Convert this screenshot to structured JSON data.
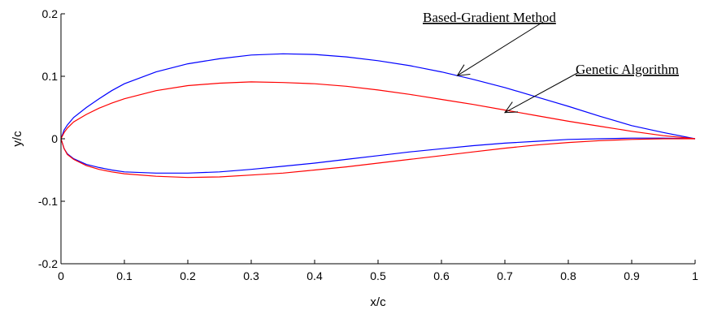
{
  "chart_data": {
    "type": "line",
    "xlabel": "x/c",
    "ylabel": "y/c",
    "xlim": [
      0,
      1
    ],
    "ylim": [
      -0.2,
      0.2
    ],
    "x_ticks": [
      "0",
      "0.1",
      "0.2",
      "0.3",
      "0.4",
      "0.5",
      "0.6",
      "0.7",
      "0.8",
      "0.9",
      "1"
    ],
    "y_ticks": [
      "0.2",
      "0.1",
      "0",
      "-0.1",
      "-0.2"
    ],
    "grid": false,
    "legend": "none",
    "series": [
      {
        "color": "#0000ff",
        "upper": [
          [
            0,
            0
          ],
          [
            0.005,
            0.014
          ],
          [
            0.01,
            0.022
          ],
          [
            0.02,
            0.034
          ],
          [
            0.04,
            0.05
          ],
          [
            0.06,
            0.064
          ],
          [
            0.08,
            0.077
          ],
          [
            0.1,
            0.088
          ],
          [
            0.15,
            0.107
          ],
          [
            0.2,
            0.12
          ],
          [
            0.25,
            0.128
          ],
          [
            0.3,
            0.134
          ],
          [
            0.35,
            0.136
          ],
          [
            0.4,
            0.135
          ],
          [
            0.45,
            0.131
          ],
          [
            0.5,
            0.125
          ],
          [
            0.55,
            0.117
          ],
          [
            0.6,
            0.107
          ],
          [
            0.65,
            0.095
          ],
          [
            0.7,
            0.082
          ],
          [
            0.75,
            0.067
          ],
          [
            0.8,
            0.052
          ],
          [
            0.85,
            0.036
          ],
          [
            0.9,
            0.021
          ],
          [
            0.95,
            0.01
          ],
          [
            1,
            0
          ]
        ],
        "lower": [
          [
            0,
            0
          ],
          [
            0.005,
            -0.016
          ],
          [
            0.01,
            -0.024
          ],
          [
            0.02,
            -0.032
          ],
          [
            0.04,
            -0.041
          ],
          [
            0.06,
            -0.046
          ],
          [
            0.08,
            -0.05
          ],
          [
            0.1,
            -0.053
          ],
          [
            0.15,
            -0.055
          ],
          [
            0.2,
            -0.055
          ],
          [
            0.25,
            -0.053
          ],
          [
            0.3,
            -0.049
          ],
          [
            0.35,
            -0.044
          ],
          [
            0.4,
            -0.039
          ],
          [
            0.45,
            -0.033
          ],
          [
            0.5,
            -0.027
          ],
          [
            0.55,
            -0.021
          ],
          [
            0.6,
            -0.016
          ],
          [
            0.65,
            -0.011
          ],
          [
            0.7,
            -0.007
          ],
          [
            0.75,
            -0.004
          ],
          [
            0.8,
            -0.001
          ],
          [
            0.85,
            0
          ],
          [
            0.9,
            0.001
          ],
          [
            0.95,
            0.001
          ],
          [
            1,
            0
          ]
        ]
      },
      {
        "color": "#ff0000",
        "upper": [
          [
            0,
            0
          ],
          [
            0.005,
            0.01
          ],
          [
            0.01,
            0.017
          ],
          [
            0.02,
            0.027
          ],
          [
            0.04,
            0.039
          ],
          [
            0.06,
            0.049
          ],
          [
            0.08,
            0.057
          ],
          [
            0.1,
            0.064
          ],
          [
            0.15,
            0.077
          ],
          [
            0.2,
            0.085
          ],
          [
            0.25,
            0.089
          ],
          [
            0.3,
            0.091
          ],
          [
            0.35,
            0.09
          ],
          [
            0.4,
            0.088
          ],
          [
            0.45,
            0.084
          ],
          [
            0.5,
            0.078
          ],
          [
            0.55,
            0.071
          ],
          [
            0.6,
            0.063
          ],
          [
            0.65,
            0.055
          ],
          [
            0.7,
            0.046
          ],
          [
            0.75,
            0.037
          ],
          [
            0.8,
            0.028
          ],
          [
            0.85,
            0.02
          ],
          [
            0.9,
            0.012
          ],
          [
            0.95,
            0.005
          ],
          [
            1,
            0
          ]
        ],
        "lower": [
          [
            0,
            0
          ],
          [
            0.005,
            -0.016
          ],
          [
            0.01,
            -0.025
          ],
          [
            0.02,
            -0.033
          ],
          [
            0.04,
            -0.043
          ],
          [
            0.06,
            -0.049
          ],
          [
            0.08,
            -0.053
          ],
          [
            0.1,
            -0.056
          ],
          [
            0.15,
            -0.06
          ],
          [
            0.2,
            -0.062
          ],
          [
            0.25,
            -0.061
          ],
          [
            0.3,
            -0.058
          ],
          [
            0.35,
            -0.055
          ],
          [
            0.4,
            -0.05
          ],
          [
            0.45,
            -0.045
          ],
          [
            0.5,
            -0.039
          ],
          [
            0.55,
            -0.033
          ],
          [
            0.6,
            -0.027
          ],
          [
            0.65,
            -0.021
          ],
          [
            0.7,
            -0.015
          ],
          [
            0.75,
            -0.01
          ],
          [
            0.8,
            -0.006
          ],
          [
            0.85,
            -0.003
          ],
          [
            0.9,
            -0.001
          ],
          [
            0.95,
            0
          ],
          [
            1,
            0
          ]
        ]
      }
    ],
    "annotations": [
      {
        "text": "Based-Gradient Method",
        "points_to": [
          0.625,
          0.101
        ]
      },
      {
        "text": "Genetic Algorithm",
        "points_to": [
          0.7,
          0.042
        ]
      }
    ]
  }
}
